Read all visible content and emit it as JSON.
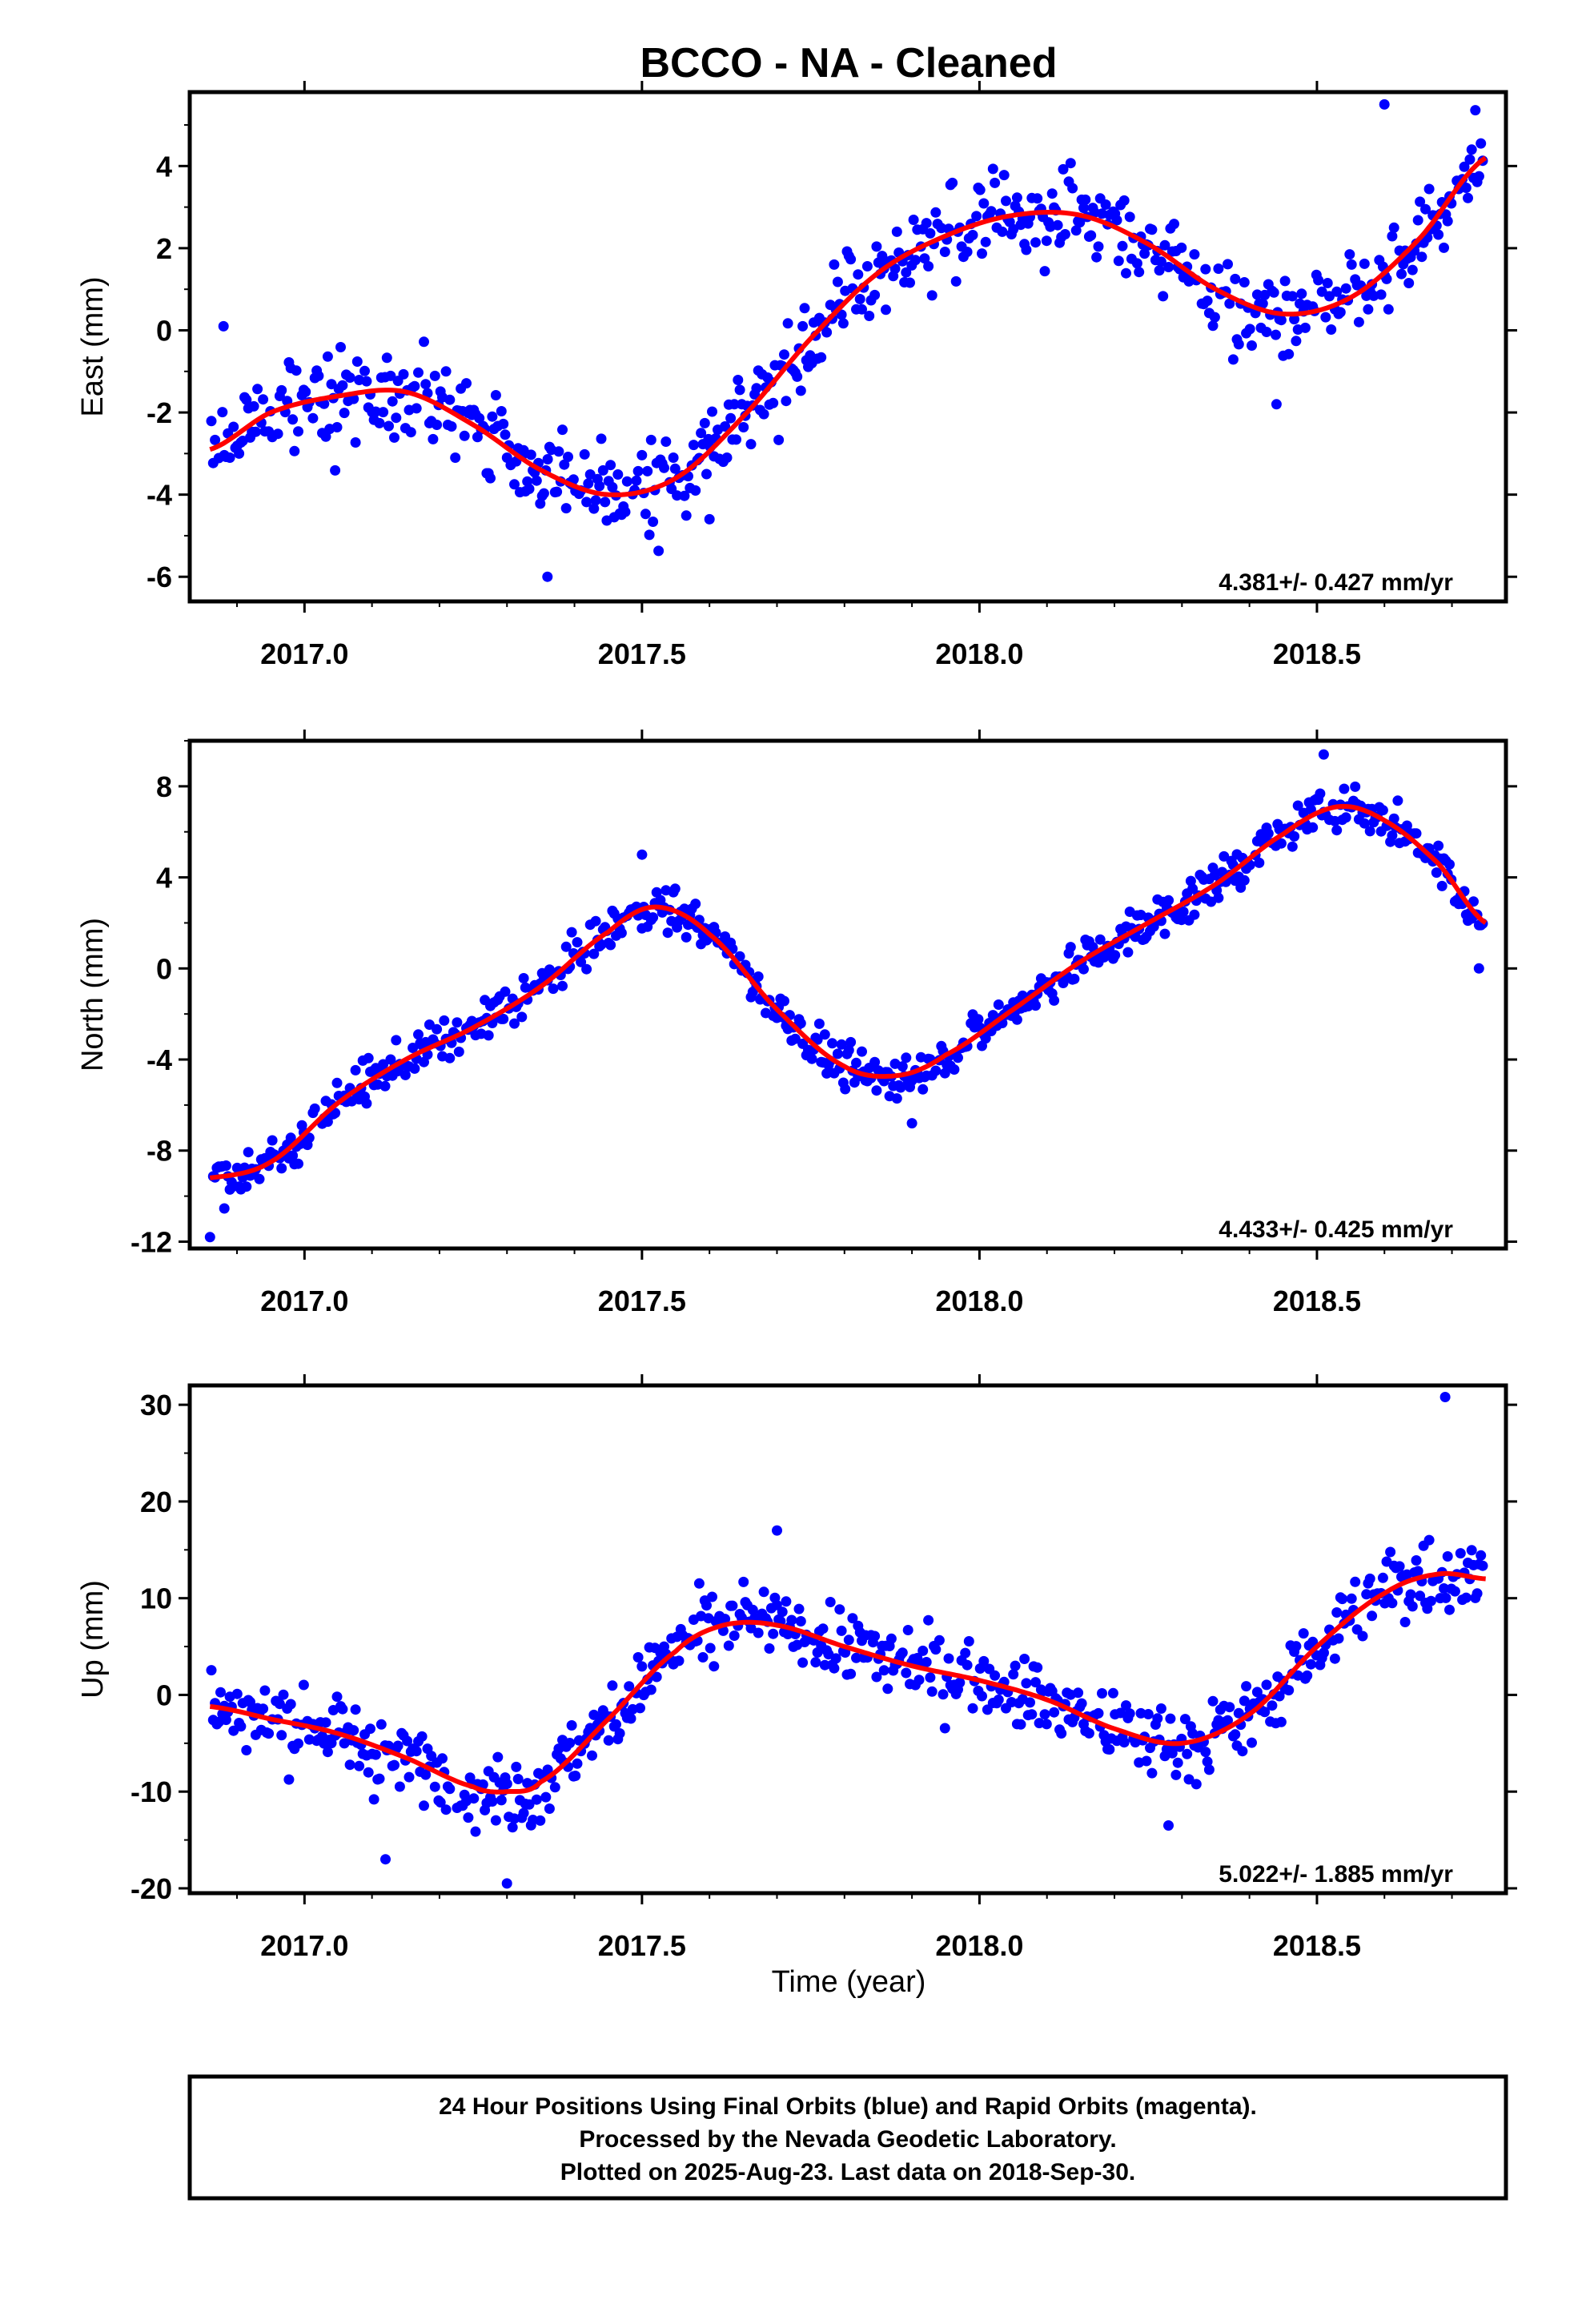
{
  "title": "BCCO  - NA - Cleaned",
  "xlabel": "Time (year)",
  "footer": {
    "lines": [
      "24 Hour Positions Using Final Orbits (blue) and Rapid Orbits (magenta).",
      "Processed by the Nevada Geodetic Laboratory.",
      "Plotted on 2025-Aug-23. Last data on 2018-Sep-30."
    ]
  },
  "colors": {
    "points": "#0000ff",
    "fit": "#ff0000",
    "frame": "#000000"
  },
  "chart_data": [
    {
      "type": "scatter",
      "ylabel": "East (mm)",
      "rate": "4.381+/- 0.427 mm/yr",
      "xlim": [
        2016.83,
        2018.78
      ],
      "ylim": [
        -6.6,
        5.8
      ],
      "xticks": [
        "2017.0",
        "2017.5",
        "2018.0",
        "2018.5"
      ],
      "xtick_values": [
        2017.0,
        2017.5,
        2018.0,
        2018.5
      ],
      "yticks": [
        "-6",
        "-4",
        "-2",
        "0",
        "2",
        "4"
      ],
      "ytick_values": [
        -6,
        -4,
        -2,
        0,
        2,
        4
      ],
      "fit": {
        "x": [
          2016.86,
          2016.95,
          2017.05,
          2017.15,
          2017.25,
          2017.35,
          2017.45,
          2017.55,
          2017.65,
          2017.75,
          2017.85,
          2017.95,
          2018.05,
          2018.15,
          2018.25,
          2018.35,
          2018.45,
          2018.55,
          2018.65,
          2018.75
        ],
        "y": [
          -2.9,
          -2.0,
          -1.6,
          -1.5,
          -2.3,
          -3.4,
          -4.0,
          -3.6,
          -2.1,
          -0.2,
          1.4,
          2.3,
          2.8,
          2.8,
          2.1,
          1.0,
          0.4,
          0.8,
          2.2,
          4.2
        ]
      },
      "series": [
        {
          "name": "",
          "x": [],
          "y": []
        }
      ]
    },
    {
      "type": "scatter",
      "ylabel": "North (mm)",
      "rate": "4.433+/- 0.425 mm/yr",
      "xlim": [
        2016.83,
        2018.78
      ],
      "ylim": [
        -12.3,
        10.0
      ],
      "xticks": [
        "2017.0",
        "2017.5",
        "2018.0",
        "2018.5"
      ],
      "xtick_values": [
        2017.0,
        2017.5,
        2018.0,
        2018.5
      ],
      "yticks": [
        "-12",
        "-8",
        "-4",
        "0",
        "4",
        "8"
      ],
      "ytick_values": [
        -12,
        -8,
        -4,
        0,
        4,
        8
      ],
      "fit": {
        "x": [
          2016.86,
          2016.95,
          2017.05,
          2017.15,
          2017.25,
          2017.35,
          2017.45,
          2017.52,
          2017.6,
          2017.7,
          2017.8,
          2017.88,
          2017.95,
          2018.05,
          2018.15,
          2018.25,
          2018.35,
          2018.45,
          2018.53,
          2018.6,
          2018.68,
          2018.75
        ],
        "y": [
          -9.2,
          -8.5,
          -5.9,
          -4.0,
          -2.6,
          -0.8,
          1.6,
          2.7,
          1.5,
          -1.8,
          -4.3,
          -4.7,
          -3.8,
          -1.8,
          0.3,
          2.0,
          3.7,
          5.9,
          7.1,
          6.5,
          4.6,
          2.0
        ]
      },
      "series": [
        {
          "name": "",
          "x": [],
          "y": []
        }
      ]
    },
    {
      "type": "scatter",
      "ylabel": "Up (mm)",
      "rate": "5.022+/- 1.885 mm/yr",
      "xlim": [
        2016.83,
        2018.78
      ],
      "ylim": [
        -20.5,
        32.0
      ],
      "xticks": [
        "2017.0",
        "2017.5",
        "2018.0",
        "2018.5"
      ],
      "xtick_values": [
        2017.0,
        2017.5,
        2018.0,
        2018.5
      ],
      "yticks": [
        "-20",
        "-10",
        "0",
        "10",
        "20",
        "30"
      ],
      "ytick_values": [
        -20,
        -10,
        0,
        10,
        20,
        30
      ],
      "fit": {
        "x": [
          2016.86,
          2016.95,
          2017.05,
          2017.15,
          2017.25,
          2017.3,
          2017.35,
          2017.45,
          2017.55,
          2017.62,
          2017.7,
          2017.8,
          2017.9,
          2018.0,
          2018.1,
          2018.2,
          2018.3,
          2018.4,
          2018.5,
          2018.6,
          2018.68,
          2018.75
        ],
        "y": [
          -1.2,
          -2.5,
          -4.0,
          -6.5,
          -9.5,
          -10.0,
          -9.0,
          -2.5,
          4.5,
          7.2,
          7.2,
          5.0,
          3.0,
          1.5,
          -0.5,
          -3.5,
          -5.0,
          -2.0,
          5.0,
          10.5,
          12.5,
          12.0
        ]
      },
      "series": [
        {
          "name": "",
          "x": [],
          "y": []
        }
      ]
    }
  ]
}
